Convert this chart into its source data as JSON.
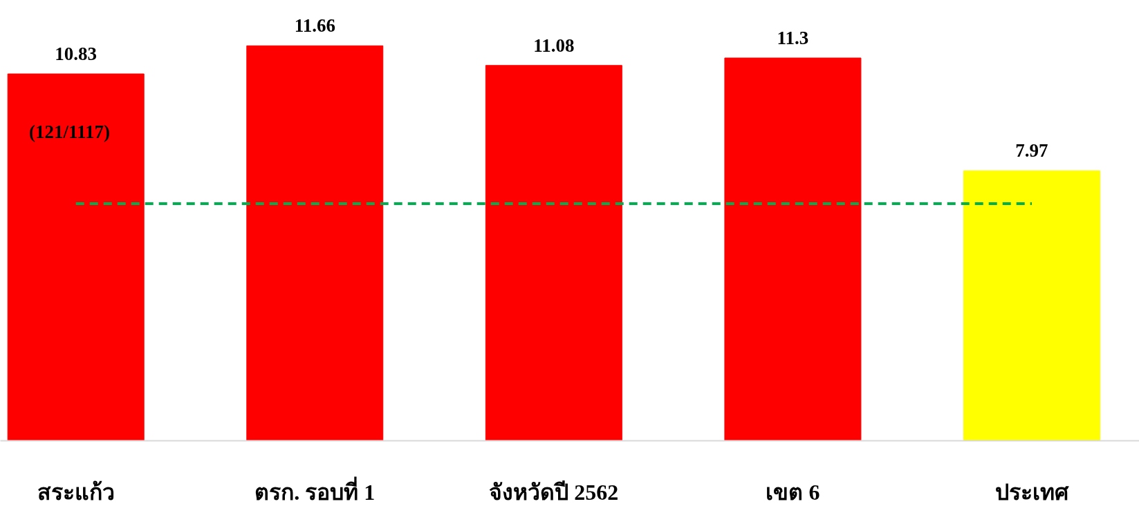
{
  "chart_data": {
    "type": "bar",
    "categories": [
      "สระแก้ว",
      "ตรก. รอบที่ 1",
      "จังหวัดปี 2562",
      "เขต 6",
      "ประเทศ"
    ],
    "values": [
      10.83,
      11.66,
      11.08,
      11.3,
      7.97
    ],
    "colors": [
      "#ff0000",
      "#ff0000",
      "#ff0000",
      "#ff0000",
      "#ffff00"
    ],
    "data_labels": true,
    "tick_labels": "x",
    "grid": false,
    "ref_lines": [
      {
        "axis": "y",
        "value": 7,
        "color": "#00b050",
        "line_style": "dashed"
      }
    ],
    "annotations": [
      "(121/1117)"
    ]
  }
}
